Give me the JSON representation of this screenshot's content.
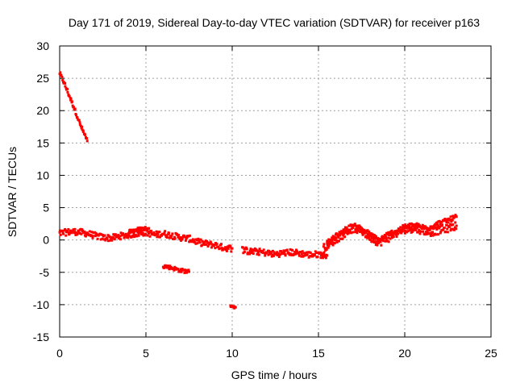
{
  "chart_data": {
    "type": "scatter",
    "title": "Day 171 of 2019, Sidereal Day-to-day VTEC variation (SDTVAR) for receiver p163",
    "xlabel": "GPS time / hours",
    "ylabel": "SDTVAR / TECUs",
    "xlim": [
      0,
      25
    ],
    "ylim": [
      -15,
      30
    ],
    "xticks": [
      0,
      5,
      10,
      15,
      20,
      25
    ],
    "yticks": [
      -15,
      -10,
      -5,
      0,
      5,
      10,
      15,
      20,
      25,
      30
    ],
    "grid": true,
    "marker_color": "#ff0000",
    "series": [
      {
        "name": "SDTVAR",
        "segments": [
          {
            "x": [
              0.0,
              0.3,
              0.6,
              0.9,
              1.2,
              1.6
            ],
            "y": [
              25.8,
              24.0,
              22.0,
              20.0,
              17.8,
              15.3
            ],
            "spread": 0.6
          },
          {
            "x": [
              0.0,
              0.4,
              0.8,
              1.2,
              1.6,
              2.0,
              2.5,
              3.0,
              3.5,
              4.0,
              4.5,
              5.0,
              5.5,
              6.0,
              6.5,
              7.0,
              7.5,
              8.0,
              8.5,
              9.0,
              9.5,
              10.0
            ],
            "y": [
              1.0,
              1.2,
              1.3,
              1.2,
              1.0,
              0.7,
              0.4,
              0.3,
              0.6,
              0.8,
              1.0,
              1.2,
              0.8,
              1.0,
              0.7,
              0.4,
              0.2,
              -0.3,
              -0.6,
              -0.8,
              -1.2,
              -1.3
            ],
            "spread": 1.0
          },
          {
            "x": [
              4.0,
              4.5,
              5.0,
              5.3
            ],
            "y": [
              1.3,
              1.6,
              1.8,
              1.4
            ],
            "spread": 0.6
          },
          {
            "x": [
              6.0,
              6.5,
              7.0,
              7.5
            ],
            "y": [
              -4.0,
              -4.3,
              -4.7,
              -4.9
            ],
            "spread": 0.6
          },
          {
            "x": [
              9.9,
              10.2
            ],
            "y": [
              -10.1,
              -10.4
            ],
            "spread": 0.5
          },
          {
            "x": [
              10.6,
              11.0,
              11.5,
              12.0,
              12.5,
              13.0,
              13.5,
              14.0,
              14.5,
              15.0,
              15.5
            ],
            "y": [
              -1.5,
              -1.8,
              -1.8,
              -2.0,
              -2.2,
              -2.0,
              -1.9,
              -2.1,
              -2.3,
              -2.2,
              -2.4
            ],
            "spread": 1.0
          },
          {
            "x": [
              15.3,
              15.6,
              16.0,
              16.5,
              17.0,
              17.5,
              18.0,
              18.5,
              19.0,
              19.5,
              20.0,
              20.5,
              21.0,
              21.5,
              22.0,
              22.5,
              23.0
            ],
            "y": [
              -1.2,
              -0.6,
              0.0,
              1.0,
              1.8,
              1.4,
              0.4,
              -0.4,
              0.2,
              1.0,
              1.6,
              1.8,
              1.5,
              1.2,
              1.5,
              1.8,
              2.2
            ],
            "spread": 1.2
          },
          {
            "x": [
              15.5,
              16.0,
              16.5,
              17.0,
              17.5,
              18.0,
              18.5,
              19.0,
              19.5,
              20.0,
              20.5,
              21.0,
              21.5,
              22.0,
              22.5,
              23.0
            ],
            "y": [
              -0.5,
              0.6,
              1.5,
              2.2,
              1.8,
              0.8,
              0.0,
              0.8,
              1.4,
              2.0,
              2.3,
              2.0,
              2.0,
              2.6,
              3.0,
              3.6
            ],
            "spread": 0.8
          }
        ]
      }
    ]
  }
}
